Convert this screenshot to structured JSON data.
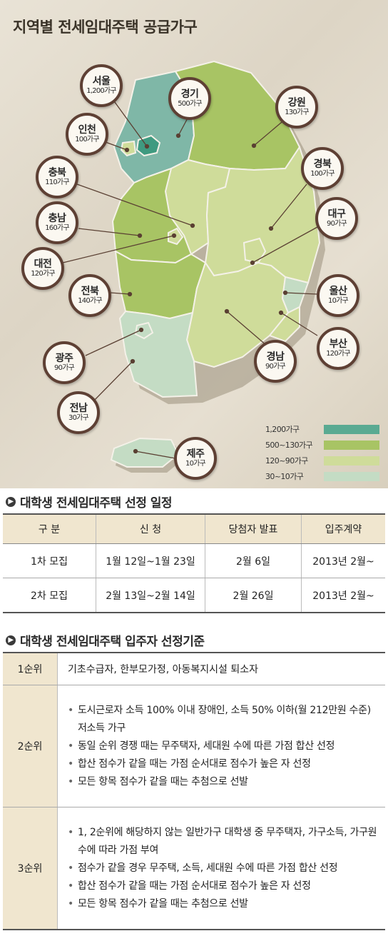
{
  "map": {
    "title": "지역별 전세임대주택 공급가구",
    "regions": [
      {
        "id": "seoul",
        "name": "서울",
        "value": "1,200가구"
      },
      {
        "id": "gyeonggi",
        "name": "경기",
        "value": "500가구"
      },
      {
        "id": "gangwon",
        "name": "강원",
        "value": "130가구"
      },
      {
        "id": "incheon",
        "name": "인천",
        "value": "100가구"
      },
      {
        "id": "chungbuk",
        "name": "충북",
        "value": "110가구"
      },
      {
        "id": "gyeongbuk",
        "name": "경북",
        "value": "100가구"
      },
      {
        "id": "chungnam",
        "name": "충남",
        "value": "160가구"
      },
      {
        "id": "daegu",
        "name": "대구",
        "value": "90가구"
      },
      {
        "id": "daejeon",
        "name": "대전",
        "value": "120가구"
      },
      {
        "id": "jeonbuk",
        "name": "전북",
        "value": "140가구"
      },
      {
        "id": "ulsan",
        "name": "울산",
        "value": "10가구"
      },
      {
        "id": "busan",
        "name": "부산",
        "value": "120가구"
      },
      {
        "id": "gwangju",
        "name": "광주",
        "value": "90가구"
      },
      {
        "id": "gyeongnam",
        "name": "경남",
        "value": "90가구"
      },
      {
        "id": "jeonnam",
        "name": "전남",
        "value": "30가구"
      },
      {
        "id": "jeju",
        "name": "제주",
        "value": "10가구"
      }
    ],
    "legend": [
      {
        "label": "1,200가구",
        "color": "#5aaa92"
      },
      {
        "label": "500~130가구",
        "color": "#a8c464"
      },
      {
        "label": "120~90가구",
        "color": "#cfdc9a"
      },
      {
        "label": "30~10가구",
        "color": "#c4dcc4"
      }
    ]
  },
  "schedule": {
    "title": "대학생 전세임대주택 선정 일정",
    "headers": [
      "구  분",
      "신  청",
      "당첨자 발표",
      "입주계약"
    ],
    "rows": [
      [
        "1차 모집",
        "1월 12일~1월 23일",
        "2월 6일",
        "2013년 2월~"
      ],
      [
        "2차 모집",
        "2월 13일~2월 14일",
        "2월 26일",
        "2013년 2월~"
      ]
    ]
  },
  "criteria": {
    "title": "대학생 전세임대주택 입주자 선정기준",
    "rank1": {
      "label": "1순위",
      "text": "기초수급자, 한부모가정, 아동복지시설 퇴소자"
    },
    "rank2": {
      "label": "2순위",
      "bullets": [
        "도시근로자 소득 100% 이내 장애인, 소득 50% 이하(월 212만원 수준) 저소득 가구",
        "동일 순위 경쟁 때는 무주택자, 세대원 수에 따른 가점 합산 선정",
        "합산 점수가 같을 때는 가점 순서대로 점수가 높은 자 선정",
        "모든 항목 점수가 같을 때는 추첨으로 선발"
      ]
    },
    "rank3": {
      "label": "3순위",
      "bullets": [
        "1, 2순위에 해당하지 않는 일반가구 대학생 중 무주택자, 가구소득, 가구원 수에 따라 가점 부여",
        "점수가 같을 경우 무주택, 소득, 세대원 수에 따른 가점 합산 선정",
        "합산 점수가 같을 때는 가점 순서대로 점수가 높은 자 선정",
        "모든 항목 점수가 같을 때는 추첨으로 선발"
      ]
    }
  }
}
